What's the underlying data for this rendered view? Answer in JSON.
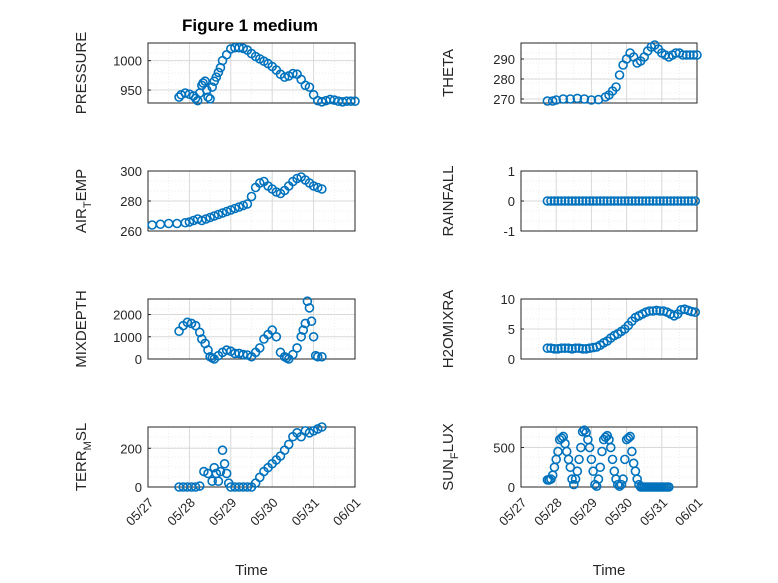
{
  "figure_title": "Figure 1 medium",
  "colors": {
    "marker": "#0072BD",
    "grid": "#d9d9d9",
    "axis": "#262626"
  },
  "chart_data": [
    {
      "type": "scatter",
      "id": "pressure",
      "ylabel": "PRESSURE",
      "ylabel_sub": "",
      "xlabel": "",
      "xlim": [
        0,
        5
      ],
      "ylim": [
        928,
        1030
      ],
      "xticks": [],
      "xtick_labels": [],
      "yticks": [
        950,
        1000
      ],
      "ytick_labels": [
        "950",
        "1000"
      ],
      "title": "Figure 1 medium",
      "x": [
        0.75,
        0.8,
        0.9,
        1.0,
        1.1,
        1.15,
        1.2,
        1.25,
        1.3,
        1.33,
        1.38,
        1.42,
        1.45,
        1.5,
        1.55,
        1.6,
        1.65,
        1.7,
        1.75,
        1.8,
        1.9,
        2.0,
        2.1,
        2.2,
        2.3,
        2.4,
        2.5,
        2.6,
        2.7,
        2.8,
        2.9,
        3.0,
        3.1,
        3.2,
        3.3,
        3.4,
        3.5,
        3.6,
        3.7,
        3.8,
        3.9,
        4.0,
        4.1,
        4.2,
        4.3,
        4.4,
        4.5,
        4.6,
        4.7,
        4.8,
        4.9,
        5.0
      ],
      "y": [
        938,
        942,
        945,
        943,
        940,
        936,
        932,
        945,
        958,
        962,
        965,
        950,
        938,
        935,
        955,
        965,
        972,
        980,
        988,
        1000,
        1010,
        1020,
        1022,
        1022,
        1021,
        1018,
        1012,
        1007,
        1003,
        999,
        995,
        990,
        984,
        977,
        972,
        974,
        978,
        977,
        968,
        958,
        955,
        942,
        932,
        930,
        932,
        934,
        933,
        931,
        930,
        931,
        931,
        931
      ]
    },
    {
      "type": "scatter",
      "id": "theta",
      "ylabel": "THETA",
      "ylabel_sub": "",
      "xlabel": "",
      "xlim": [
        0,
        5
      ],
      "ylim": [
        268,
        298
      ],
      "xticks": [],
      "xtick_labels": [],
      "yticks": [
        270,
        280,
        290
      ],
      "ytick_labels": [
        "270",
        "280",
        "290"
      ],
      "x": [
        0.75,
        0.9,
        1.0,
        1.2,
        1.4,
        1.6,
        1.8,
        2.0,
        2.2,
        2.4,
        2.5,
        2.6,
        2.7,
        2.8,
        2.9,
        3.0,
        3.1,
        3.2,
        3.3,
        3.4,
        3.5,
        3.6,
        3.7,
        3.8,
        3.9,
        4.0,
        4.1,
        4.2,
        4.3,
        4.4,
        4.5,
        4.6,
        4.7,
        4.8,
        4.9,
        5.0
      ],
      "y": [
        269,
        269,
        269.5,
        270,
        270,
        270.3,
        270,
        269.5,
        269.7,
        271,
        272,
        274,
        276,
        282,
        287,
        290,
        293,
        291,
        288,
        289,
        291,
        294,
        296,
        297,
        295,
        293,
        292,
        291,
        292,
        293,
        293,
        292,
        292,
        292,
        292,
        292
      ]
    },
    {
      "type": "scatter",
      "id": "air_temp",
      "ylabel": "AIR",
      "ylabel_sub": "T",
      "ylabel_suffix": "EMP",
      "xlabel": "",
      "xlim": [
        0,
        5
      ],
      "ylim": [
        260,
        300
      ],
      "xticks": [],
      "xtick_labels": [],
      "yticks": [
        260,
        280,
        300
      ],
      "ytick_labels": [
        "260",
        "280",
        "300"
      ],
      "x": [
        0.1,
        0.3,
        0.5,
        0.7,
        0.9,
        1.0,
        1.1,
        1.2,
        1.3,
        1.4,
        1.5,
        1.6,
        1.7,
        1.8,
        1.9,
        2.0,
        2.1,
        2.2,
        2.3,
        2.4,
        2.5,
        2.6,
        2.7,
        2.8,
        2.9,
        3.0,
        3.1,
        3.2,
        3.3,
        3.4,
        3.5,
        3.6,
        3.7,
        3.8,
        3.9,
        4.0,
        4.1,
        4.2
      ],
      "y": [
        264,
        264.5,
        265,
        265,
        265.5,
        266,
        267,
        268,
        267,
        268,
        269,
        270,
        271,
        272,
        273,
        274,
        275,
        276,
        277,
        278,
        283,
        289,
        292,
        293,
        290,
        288,
        286,
        285,
        287,
        290,
        293,
        295,
        296,
        294,
        292,
        290,
        289,
        288
      ]
    },
    {
      "type": "scatter",
      "id": "rainfall",
      "ylabel": "RAINFALL",
      "ylabel_sub": "",
      "xlabel": "",
      "xlim": [
        0,
        5
      ],
      "ylim": [
        -1,
        1
      ],
      "xticks": [],
      "xtick_labels": [],
      "yticks": [
        -1,
        0,
        1
      ],
      "ytick_labels": [
        "-1",
        "0",
        "1"
      ],
      "x": [
        0.75,
        0.85,
        0.95,
        1.05,
        1.15,
        1.25,
        1.35,
        1.45,
        1.55,
        1.65,
        1.75,
        1.85,
        1.95,
        2.05,
        2.15,
        2.25,
        2.35,
        2.45,
        2.55,
        2.65,
        2.75,
        2.85,
        2.95,
        3.05,
        3.15,
        3.25,
        3.35,
        3.45,
        3.55,
        3.65,
        3.75,
        3.85,
        3.95,
        4.05,
        4.15,
        4.25,
        4.35,
        4.45,
        4.55,
        4.65,
        4.75,
        4.85,
        4.95
      ],
      "y": [
        0,
        0,
        0,
        0,
        0,
        0,
        0,
        0,
        0,
        0,
        0,
        0,
        0,
        0,
        0,
        0,
        0,
        0,
        0,
        0,
        0,
        0,
        0,
        0,
        0,
        0,
        0,
        0,
        0,
        0,
        0,
        0,
        0,
        0,
        0,
        0,
        0,
        0,
        0,
        0,
        0,
        0,
        0
      ]
    },
    {
      "type": "scatter",
      "id": "mixdepth",
      "ylabel": "MIXDEPTH",
      "ylabel_sub": "",
      "xlabel": "",
      "xlim": [
        0,
        5
      ],
      "ylim": [
        0,
        2700
      ],
      "xticks": [],
      "xtick_labels": [],
      "yticks": [
        0,
        1000,
        2000
      ],
      "ytick_labels": [
        "0",
        "1000",
        "2000"
      ],
      "x": [
        0.75,
        0.85,
        0.95,
        1.05,
        1.15,
        1.25,
        1.3,
        1.38,
        1.45,
        1.5,
        1.55,
        1.6,
        1.7,
        1.8,
        1.9,
        2.0,
        2.1,
        2.2,
        2.3,
        2.4,
        2.5,
        2.6,
        2.7,
        2.8,
        2.9,
        3.0,
        3.1,
        3.2,
        3.3,
        3.35,
        3.4,
        3.5,
        3.6,
        3.7,
        3.75,
        3.8,
        3.85,
        3.9,
        3.95,
        4.0,
        4.05,
        4.1,
        4.2
      ],
      "y": [
        1250,
        1500,
        1650,
        1600,
        1500,
        1200,
        900,
        700,
        400,
        100,
        50,
        0,
        150,
        300,
        400,
        350,
        250,
        250,
        200,
        180,
        100,
        300,
        500,
        900,
        1100,
        1300,
        1000,
        300,
        100,
        50,
        0,
        200,
        500,
        1000,
        1300,
        1600,
        2600,
        2300,
        1700,
        1000,
        150,
        100,
        100
      ]
    },
    {
      "type": "scatter",
      "id": "h2omixra",
      "ylabel": "H2OMIXRA",
      "ylabel_sub": "",
      "xlabel": "",
      "xlim": [
        0,
        5
      ],
      "ylim": [
        0,
        10
      ],
      "xticks": [],
      "xtick_labels": [],
      "yticks": [
        0,
        5,
        10
      ],
      "ytick_labels": [
        "0",
        "5",
        "10"
      ],
      "x": [
        0.75,
        0.85,
        0.95,
        1.05,
        1.15,
        1.25,
        1.35,
        1.45,
        1.55,
        1.65,
        1.75,
        1.85,
        1.95,
        2.05,
        2.15,
        2.25,
        2.35,
        2.45,
        2.55,
        2.65,
        2.75,
        2.85,
        2.95,
        3.05,
        3.15,
        3.25,
        3.35,
        3.45,
        3.55,
        3.65,
        3.75,
        3.85,
        3.95,
        4.05,
        4.15,
        4.25,
        4.35,
        4.45,
        4.55,
        4.65,
        4.75,
        4.85,
        4.95
      ],
      "y": [
        1.8,
        1.8,
        1.7,
        1.7,
        1.8,
        1.8,
        1.8,
        1.7,
        1.8,
        1.8,
        1.7,
        1.7,
        1.8,
        1.9,
        2.0,
        2.3,
        2.7,
        3.0,
        3.5,
        3.9,
        4.2,
        4.6,
        5.0,
        5.6,
        6.3,
        6.9,
        7.2,
        7.5,
        7.8,
        8.0,
        8.0,
        8.1,
        8.0,
        8.0,
        7.8,
        7.5,
        7.2,
        7.5,
        8.2,
        8.3,
        8.1,
        7.9,
        7.8
      ]
    },
    {
      "type": "scatter",
      "id": "terr_msl",
      "ylabel": "TERR",
      "ylabel_sub": "M",
      "ylabel_suffix": "SL",
      "xlabel": "Time",
      "xlim": [
        0,
        5
      ],
      "ylim": [
        0,
        310
      ],
      "xticks": [
        0,
        1,
        2,
        3,
        4,
        5
      ],
      "xtick_labels": [
        "05/27",
        "05/28",
        "05/29",
        "05/30",
        "05/31",
        "06/01"
      ],
      "yticks": [
        0,
        200
      ],
      "ytick_labels": [
        "0",
        "200"
      ],
      "x": [
        0.75,
        0.85,
        0.95,
        1.05,
        1.15,
        1.25,
        1.35,
        1.45,
        1.55,
        1.6,
        1.65,
        1.7,
        1.75,
        1.8,
        1.85,
        1.9,
        1.95,
        2.0,
        2.1,
        2.2,
        2.3,
        2.4,
        2.5,
        2.6,
        2.7,
        2.8,
        2.9,
        3.0,
        3.1,
        3.2,
        3.3,
        3.4,
        3.5,
        3.6,
        3.7,
        3.8,
        3.9,
        4.0,
        4.1,
        4.2
      ],
      "y": [
        0,
        0,
        0,
        0,
        0,
        5,
        80,
        70,
        30,
        100,
        70,
        30,
        80,
        190,
        120,
        70,
        20,
        0,
        0,
        0,
        0,
        0,
        0,
        20,
        50,
        80,
        100,
        120,
        140,
        160,
        190,
        220,
        260,
        280,
        260,
        290,
        280,
        290,
        300,
        310
      ]
    },
    {
      "type": "scatter",
      "id": "sun_flux",
      "ylabel": "SUN",
      "ylabel_sub": "F",
      "ylabel_suffix": "LUX",
      "xlabel": "Time",
      "xlim": [
        0,
        5
      ],
      "ylim": [
        0,
        760
      ],
      "xticks": [
        0,
        1,
        2,
        3,
        4,
        5
      ],
      "xtick_labels": [
        "05/27",
        "05/28",
        "05/29",
        "05/30",
        "05/31",
        "06/01"
      ],
      "yticks": [
        0,
        500
      ],
      "ytick_labels": [
        "0",
        "500"
      ],
      "x": [
        0.75,
        0.8,
        0.85,
        0.9,
        0.95,
        1.0,
        1.05,
        1.1,
        1.15,
        1.2,
        1.25,
        1.3,
        1.35,
        1.4,
        1.45,
        1.5,
        1.55,
        1.6,
        1.65,
        1.7,
        1.75,
        1.8,
        1.85,
        1.9,
        1.95,
        2.0,
        2.05,
        2.1,
        2.15,
        2.2,
        2.25,
        2.3,
        2.35,
        2.4,
        2.45,
        2.5,
        2.55,
        2.6,
        2.65,
        2.7,
        2.75,
        2.8,
        2.85,
        2.9,
        2.95,
        3.0,
        3.05,
        3.1,
        3.15,
        3.2,
        3.25,
        3.3,
        3.35,
        3.4,
        3.45,
        3.5,
        3.55,
        3.6,
        3.65,
        3.7,
        3.75,
        3.8,
        3.85,
        3.9,
        3.95,
        4.0,
        4.05,
        4.1,
        4.15,
        4.2
      ],
      "y": [
        90,
        90,
        100,
        150,
        250,
        350,
        450,
        600,
        620,
        640,
        550,
        450,
        350,
        250,
        100,
        30,
        100,
        200,
        350,
        500,
        700,
        720,
        690,
        600,
        500,
        350,
        200,
        30,
        10,
        100,
        250,
        450,
        600,
        630,
        650,
        600,
        500,
        350,
        200,
        100,
        30,
        10,
        30,
        100,
        350,
        600,
        620,
        640,
        450,
        300,
        200,
        100,
        30,
        0,
        0,
        0,
        0,
        0,
        0,
        0,
        0,
        0,
        0,
        0,
        0,
        0,
        0,
        0,
        0,
        0
      ]
    }
  ]
}
